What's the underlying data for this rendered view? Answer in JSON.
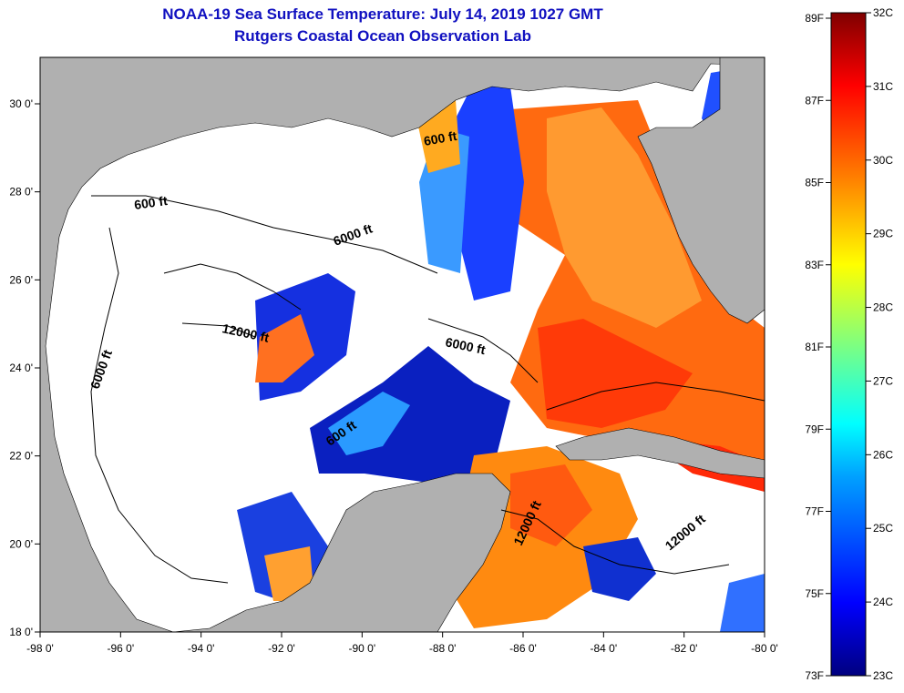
{
  "header": {
    "title": "NOAA-19 Sea Surface Temperature:  July 14, 2019 1027 GMT",
    "subtitle": "Rutgers Coastal Ocean Observation Lab"
  },
  "map": {
    "lon_ticks": [
      "-98 0'",
      "-96 0'",
      "-94 0'",
      "-92 0'",
      "-90 0'",
      "-88 0'",
      "-86 0'",
      "-84 0'",
      "-82 0'",
      "-80 0'"
    ],
    "lat_ticks": [
      "30 0'",
      "28 0'",
      "26 0'",
      "24 0'",
      "22 0'",
      "20 0'",
      "18 0'"
    ],
    "contour_labels": [
      "600 ft",
      "600 ft",
      "6000 ft",
      "12000 ft",
      "6000 ft",
      "6000 ft",
      "600 ft",
      "12000 ft",
      "12000 ft"
    ],
    "colors": {
      "land": "#b0b0b0",
      "no_data": "#ffffff",
      "contour": "#000000"
    }
  },
  "colorbar": {
    "fahrenheit_labels": [
      "89F",
      "87F",
      "85F",
      "83F",
      "81F",
      "79F",
      "77F",
      "75F",
      "73F"
    ],
    "celsius_labels": [
      "32C",
      "31C",
      "30C",
      "29C",
      "28C",
      "27C",
      "26C",
      "25C",
      "24C",
      "23C"
    ],
    "range_c": [
      23,
      32
    ]
  }
}
